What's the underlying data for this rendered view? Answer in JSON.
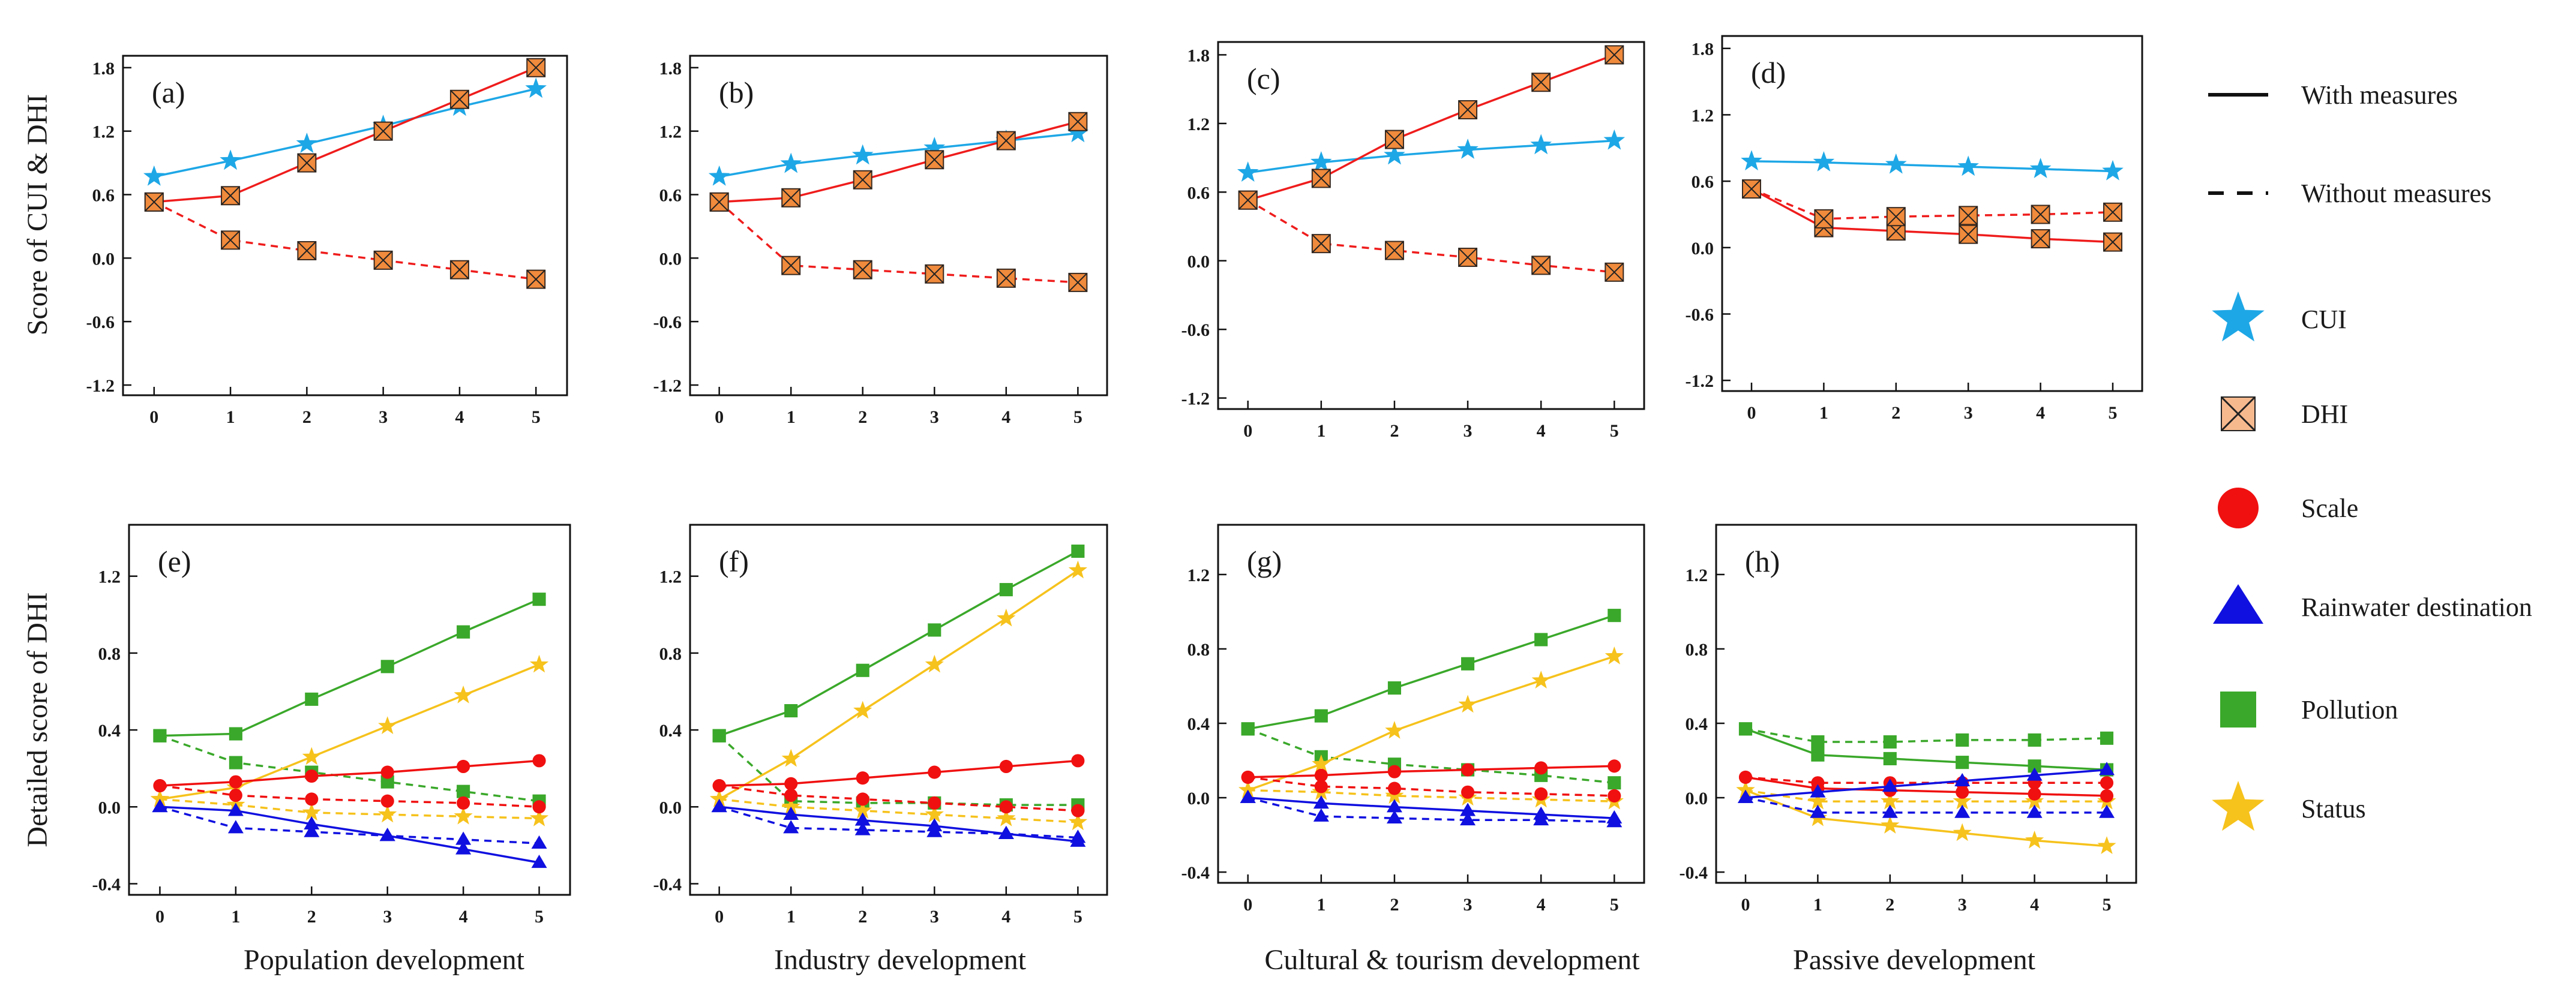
{
  "figure": {
    "ylabel_top": "Score of  CUI & DHI",
    "ylabel_bottom": "Detailed score of  DHI",
    "column_labels": [
      "Population development",
      "Industry development",
      "Cultural & tourism development",
      "Passive development"
    ]
  },
  "legend": {
    "items": [
      {
        "id": "with",
        "label": "With measures",
        "kind": "line-solid"
      },
      {
        "id": "without",
        "label": "Without measures",
        "kind": "line-dashed"
      },
      {
        "id": "cui",
        "label": "CUI",
        "kind": "star",
        "color": "#1ea7e6"
      },
      {
        "id": "dhi",
        "label": "DHI",
        "kind": "xbox",
        "color": "#f6b98e"
      },
      {
        "id": "scale",
        "label": "Scale",
        "kind": "circle",
        "color": "#f01010"
      },
      {
        "id": "rain",
        "label": "Rainwater destination",
        "kind": "triangle",
        "color": "#1010e0"
      },
      {
        "id": "poll",
        "label": "Pollution",
        "kind": "square",
        "color": "#3aa82a"
      },
      {
        "id": "status",
        "label": "Status",
        "kind": "star",
        "color": "#f6c21c"
      }
    ]
  },
  "colors": {
    "cui": "#1ea7e6",
    "dhi_line": "#ef1c1c",
    "dhi_fill": "#f08a3c",
    "scale": "#f01010",
    "rain": "#1010e0",
    "poll": "#3aa82a",
    "status": "#f6c21c"
  },
  "chart_data": [
    {
      "type": "line",
      "panel": "(a)",
      "x": [
        0,
        1,
        2,
        3,
        4,
        5
      ],
      "xticks": [
        "0",
        "1",
        "2",
        "3",
        "4",
        "5"
      ],
      "ylim": [
        -1.2,
        1.8
      ],
      "yticks": [
        "-1.2",
        "-0.6",
        "0.0",
        "0.6",
        "1.2",
        "1.8"
      ],
      "series": [
        {
          "name": "CUI",
          "style": "solid",
          "marker": "star",
          "color": "#1ea7e6",
          "values": [
            0.77,
            0.92,
            1.08,
            1.25,
            1.43,
            1.6
          ]
        },
        {
          "name": "DHI with measures",
          "style": "solid",
          "marker": "xbox",
          "color": "#ef1c1c",
          "values": [
            0.53,
            0.59,
            0.9,
            1.2,
            1.5,
            1.8
          ]
        },
        {
          "name": "DHI without measures",
          "style": "dashed",
          "marker": "xbox",
          "color": "#ef1c1c",
          "values": [
            0.53,
            0.17,
            0.07,
            -0.02,
            -0.11,
            -0.2
          ]
        }
      ]
    },
    {
      "type": "line",
      "panel": "(b)",
      "x": [
        0,
        1,
        2,
        3,
        4,
        5
      ],
      "xticks": [
        "0",
        "1",
        "2",
        "3",
        "4",
        "5"
      ],
      "ylim": [
        -1.2,
        1.8
      ],
      "yticks": [
        "-1.2",
        "-0.6",
        "0.0",
        "0.6",
        "1.2",
        "1.8"
      ],
      "series": [
        {
          "name": "CUI",
          "style": "solid",
          "marker": "star",
          "color": "#1ea7e6",
          "values": [
            0.77,
            0.89,
            0.97,
            1.04,
            1.11,
            1.18
          ]
        },
        {
          "name": "DHI with measures",
          "style": "solid",
          "marker": "xbox",
          "color": "#ef1c1c",
          "values": [
            0.53,
            0.57,
            0.74,
            0.93,
            1.11,
            1.29
          ]
        },
        {
          "name": "DHI without measures",
          "style": "dashed",
          "marker": "xbox",
          "color": "#ef1c1c",
          "values": [
            0.53,
            -0.07,
            -0.11,
            -0.15,
            -0.19,
            -0.23
          ]
        }
      ]
    },
    {
      "type": "line",
      "panel": "(c)",
      "x": [
        0,
        1,
        2,
        3,
        4,
        5
      ],
      "xticks": [
        "0",
        "1",
        "2",
        "3",
        "4",
        "5"
      ],
      "ylim": [
        -1.2,
        1.8
      ],
      "yticks": [
        "-1.2",
        "-0.6",
        "0.0",
        "0.6",
        "1.2",
        "1.8"
      ],
      "series": [
        {
          "name": "CUI",
          "style": "solid",
          "marker": "star",
          "color": "#1ea7e6",
          "values": [
            0.77,
            0.86,
            0.92,
            0.97,
            1.01,
            1.05
          ]
        },
        {
          "name": "DHI with measures",
          "style": "solid",
          "marker": "xbox",
          "color": "#ef1c1c",
          "values": [
            0.53,
            0.72,
            1.06,
            1.32,
            1.56,
            1.8
          ]
        },
        {
          "name": "DHI without measures",
          "style": "dashed",
          "marker": "xbox",
          "color": "#ef1c1c",
          "values": [
            0.53,
            0.15,
            0.09,
            0.03,
            -0.04,
            -0.1
          ]
        }
      ]
    },
    {
      "type": "line",
      "panel": "(d)",
      "x": [
        0,
        1,
        2,
        3,
        4,
        5
      ],
      "xticks": [
        "0",
        "1",
        "2",
        "3",
        "4",
        "5"
      ],
      "ylim": [
        -1.2,
        1.8
      ],
      "yticks": [
        "-1.2",
        "-0.6",
        "0.0",
        "0.6",
        "1.2",
        "1.8"
      ],
      "series": [
        {
          "name": "CUI",
          "style": "solid",
          "marker": "star",
          "color": "#1ea7e6",
          "values": [
            0.78,
            0.77,
            0.75,
            0.73,
            0.71,
            0.69
          ]
        },
        {
          "name": "DHI with measures",
          "style": "solid",
          "marker": "xbox",
          "color": "#ef1c1c",
          "values": [
            0.53,
            0.18,
            0.15,
            0.12,
            0.08,
            0.05
          ]
        },
        {
          "name": "DHI without measures",
          "style": "dashed",
          "marker": "xbox",
          "color": "#ef1c1c",
          "values": [
            0.53,
            0.26,
            0.28,
            0.29,
            0.3,
            0.32
          ]
        }
      ]
    },
    {
      "type": "line",
      "panel": "(e)",
      "x": [
        0,
        1,
        2,
        3,
        4,
        5
      ],
      "xticks": [
        "0",
        "1",
        "2",
        "3",
        "4",
        "5"
      ],
      "ylim": [
        -0.4,
        1.4
      ],
      "yticks": [
        "-0.4",
        "0.0",
        "0.4",
        "0.8",
        "1.2"
      ],
      "series": [
        {
          "name": "Pollution with measures",
          "style": "solid",
          "marker": "square",
          "color": "#3aa82a",
          "values": [
            0.37,
            0.38,
            0.56,
            0.73,
            0.91,
            1.08
          ]
        },
        {
          "name": "Pollution without measures",
          "style": "dashed",
          "marker": "square",
          "color": "#3aa82a",
          "values": [
            0.37,
            0.23,
            0.18,
            0.13,
            0.08,
            0.03
          ]
        },
        {
          "name": "Status with measures",
          "style": "solid",
          "marker": "star",
          "color": "#f6c21c",
          "values": [
            0.04,
            0.1,
            0.26,
            0.42,
            0.58,
            0.74
          ]
        },
        {
          "name": "Status without measures",
          "style": "dashed",
          "marker": "star",
          "color": "#f6c21c",
          "values": [
            0.04,
            0.01,
            -0.03,
            -0.04,
            -0.05,
            -0.06
          ]
        },
        {
          "name": "Scale with measures",
          "style": "solid",
          "marker": "circle",
          "color": "#f01010",
          "values": [
            0.11,
            0.13,
            0.16,
            0.18,
            0.21,
            0.24
          ]
        },
        {
          "name": "Scale without measures",
          "style": "dashed",
          "marker": "circle",
          "color": "#f01010",
          "values": [
            0.11,
            0.06,
            0.04,
            0.03,
            0.02,
            0.0
          ]
        },
        {
          "name": "Rainwater destination with measures",
          "style": "solid",
          "marker": "triangle",
          "color": "#1010e0",
          "values": [
            0.0,
            -0.02,
            -0.09,
            -0.15,
            -0.22,
            -0.29
          ]
        },
        {
          "name": "Rainwater destination without measures",
          "style": "dashed",
          "marker": "triangle",
          "color": "#1010e0",
          "values": [
            0.0,
            -0.11,
            -0.13,
            -0.15,
            -0.17,
            -0.19
          ]
        }
      ]
    },
    {
      "type": "line",
      "panel": "(f)",
      "x": [
        0,
        1,
        2,
        3,
        4,
        5
      ],
      "xticks": [
        "0",
        "1",
        "2",
        "3",
        "4",
        "5"
      ],
      "ylim": [
        -0.4,
        1.4
      ],
      "yticks": [
        "-0.4",
        "0.0",
        "0.4",
        "0.8",
        "1.2"
      ],
      "series": [
        {
          "name": "Pollution with measures",
          "style": "solid",
          "marker": "square",
          "color": "#3aa82a",
          "values": [
            0.37,
            0.5,
            0.71,
            0.92,
            1.13,
            1.33
          ]
        },
        {
          "name": "Pollution without measures",
          "style": "dashed",
          "marker": "square",
          "color": "#3aa82a",
          "values": [
            0.37,
            0.03,
            0.02,
            0.02,
            0.01,
            0.01
          ]
        },
        {
          "name": "Status with measures",
          "style": "solid",
          "marker": "star",
          "color": "#f6c21c",
          "values": [
            0.04,
            0.25,
            0.5,
            0.74,
            0.98,
            1.23
          ]
        },
        {
          "name": "Status without measures",
          "style": "dashed",
          "marker": "star",
          "color": "#f6c21c",
          "values": [
            0.04,
            0.0,
            -0.02,
            -0.04,
            -0.06,
            -0.08
          ]
        },
        {
          "name": "Scale with measures",
          "style": "solid",
          "marker": "circle",
          "color": "#f01010",
          "values": [
            0.11,
            0.12,
            0.15,
            0.18,
            0.21,
            0.24
          ]
        },
        {
          "name": "Scale without measures",
          "style": "dashed",
          "marker": "circle",
          "color": "#f01010",
          "values": [
            0.11,
            0.06,
            0.04,
            0.02,
            0.0,
            -0.02
          ]
        },
        {
          "name": "Rainwater destination with measures",
          "style": "solid",
          "marker": "triangle",
          "color": "#1010e0",
          "values": [
            0.0,
            -0.04,
            -0.07,
            -0.1,
            -0.14,
            -0.18
          ]
        },
        {
          "name": "Rainwater destination without measures",
          "style": "dashed",
          "marker": "triangle",
          "color": "#1010e0",
          "values": [
            0.0,
            -0.11,
            -0.12,
            -0.13,
            -0.14,
            -0.16
          ]
        }
      ]
    },
    {
      "type": "line",
      "panel": "(g)",
      "x": [
        0,
        1,
        2,
        3,
        4,
        5
      ],
      "xticks": [
        "0",
        "1",
        "2",
        "3",
        "4",
        "5"
      ],
      "ylim": [
        -0.4,
        1.4
      ],
      "yticks": [
        "-0.4",
        "0.0",
        "0.4",
        "0.8",
        "1.2"
      ],
      "series": [
        {
          "name": "Pollution with measures",
          "style": "solid",
          "marker": "square",
          "color": "#3aa82a",
          "values": [
            0.37,
            0.44,
            0.59,
            0.72,
            0.85,
            0.98
          ]
        },
        {
          "name": "Pollution without measures",
          "style": "dashed",
          "marker": "square",
          "color": "#3aa82a",
          "values": [
            0.37,
            0.22,
            0.18,
            0.15,
            0.12,
            0.08
          ]
        },
        {
          "name": "Status with measures",
          "style": "solid",
          "marker": "star",
          "color": "#f6c21c",
          "values": [
            0.04,
            0.18,
            0.36,
            0.5,
            0.63,
            0.76
          ]
        },
        {
          "name": "Status without measures",
          "style": "dashed",
          "marker": "star",
          "color": "#f6c21c",
          "values": [
            0.04,
            0.03,
            0.01,
            0.0,
            -0.01,
            -0.02
          ]
        },
        {
          "name": "Scale with measures",
          "style": "solid",
          "marker": "circle",
          "color": "#f01010",
          "values": [
            0.11,
            0.12,
            0.14,
            0.15,
            0.16,
            0.17
          ]
        },
        {
          "name": "Scale without measures",
          "style": "dashed",
          "marker": "circle",
          "color": "#f01010",
          "values": [
            0.11,
            0.06,
            0.05,
            0.03,
            0.02,
            0.01
          ]
        },
        {
          "name": "Rainwater destination with measures",
          "style": "solid",
          "marker": "triangle",
          "color": "#1010e0",
          "values": [
            0.0,
            -0.03,
            -0.05,
            -0.07,
            -0.09,
            -0.11
          ]
        },
        {
          "name": "Rainwater destination without measures",
          "style": "dashed",
          "marker": "triangle",
          "color": "#1010e0",
          "values": [
            0.0,
            -0.1,
            -0.11,
            -0.12,
            -0.12,
            -0.13
          ]
        }
      ]
    },
    {
      "type": "line",
      "panel": "(h)",
      "x": [
        0,
        1,
        2,
        3,
        4,
        5
      ],
      "xticks": [
        "0",
        "1",
        "2",
        "3",
        "4",
        "5"
      ],
      "ylim": [
        -0.4,
        1.4
      ],
      "yticks": [
        "-0.4",
        "0.0",
        "0.4",
        "0.8",
        "1.2"
      ],
      "series": [
        {
          "name": "Pollution with measures",
          "style": "solid",
          "marker": "square",
          "color": "#3aa82a",
          "values": [
            0.37,
            0.23,
            0.21,
            0.19,
            0.17,
            0.15
          ]
        },
        {
          "name": "Pollution without measures",
          "style": "dashed",
          "marker": "square",
          "color": "#3aa82a",
          "values": [
            0.37,
            0.3,
            0.3,
            0.31,
            0.31,
            0.32
          ]
        },
        {
          "name": "Status with measures",
          "style": "solid",
          "marker": "star",
          "color": "#f6c21c",
          "values": [
            0.04,
            -0.11,
            -0.15,
            -0.19,
            -0.23,
            -0.26
          ]
        },
        {
          "name": "Status without measures",
          "style": "dashed",
          "marker": "star",
          "color": "#f6c21c",
          "values": [
            0.04,
            -0.02,
            -0.02,
            -0.02,
            -0.02,
            -0.02
          ]
        },
        {
          "name": "Scale with measures",
          "style": "solid",
          "marker": "circle",
          "color": "#f01010",
          "values": [
            0.11,
            0.05,
            0.04,
            0.03,
            0.02,
            0.01
          ]
        },
        {
          "name": "Scale without measures",
          "style": "dashed",
          "marker": "circle",
          "color": "#f01010",
          "values": [
            0.11,
            0.08,
            0.08,
            0.08,
            0.08,
            0.08
          ]
        },
        {
          "name": "Rainwater destination with measures",
          "style": "solid",
          "marker": "triangle",
          "color": "#1010e0",
          "values": [
            0.0,
            0.03,
            0.06,
            0.09,
            0.12,
            0.15
          ]
        },
        {
          "name": "Rainwater destination without measures",
          "style": "dashed",
          "marker": "triangle",
          "color": "#1010e0",
          "values": [
            0.0,
            -0.08,
            -0.08,
            -0.08,
            -0.08,
            -0.08
          ]
        }
      ]
    }
  ]
}
